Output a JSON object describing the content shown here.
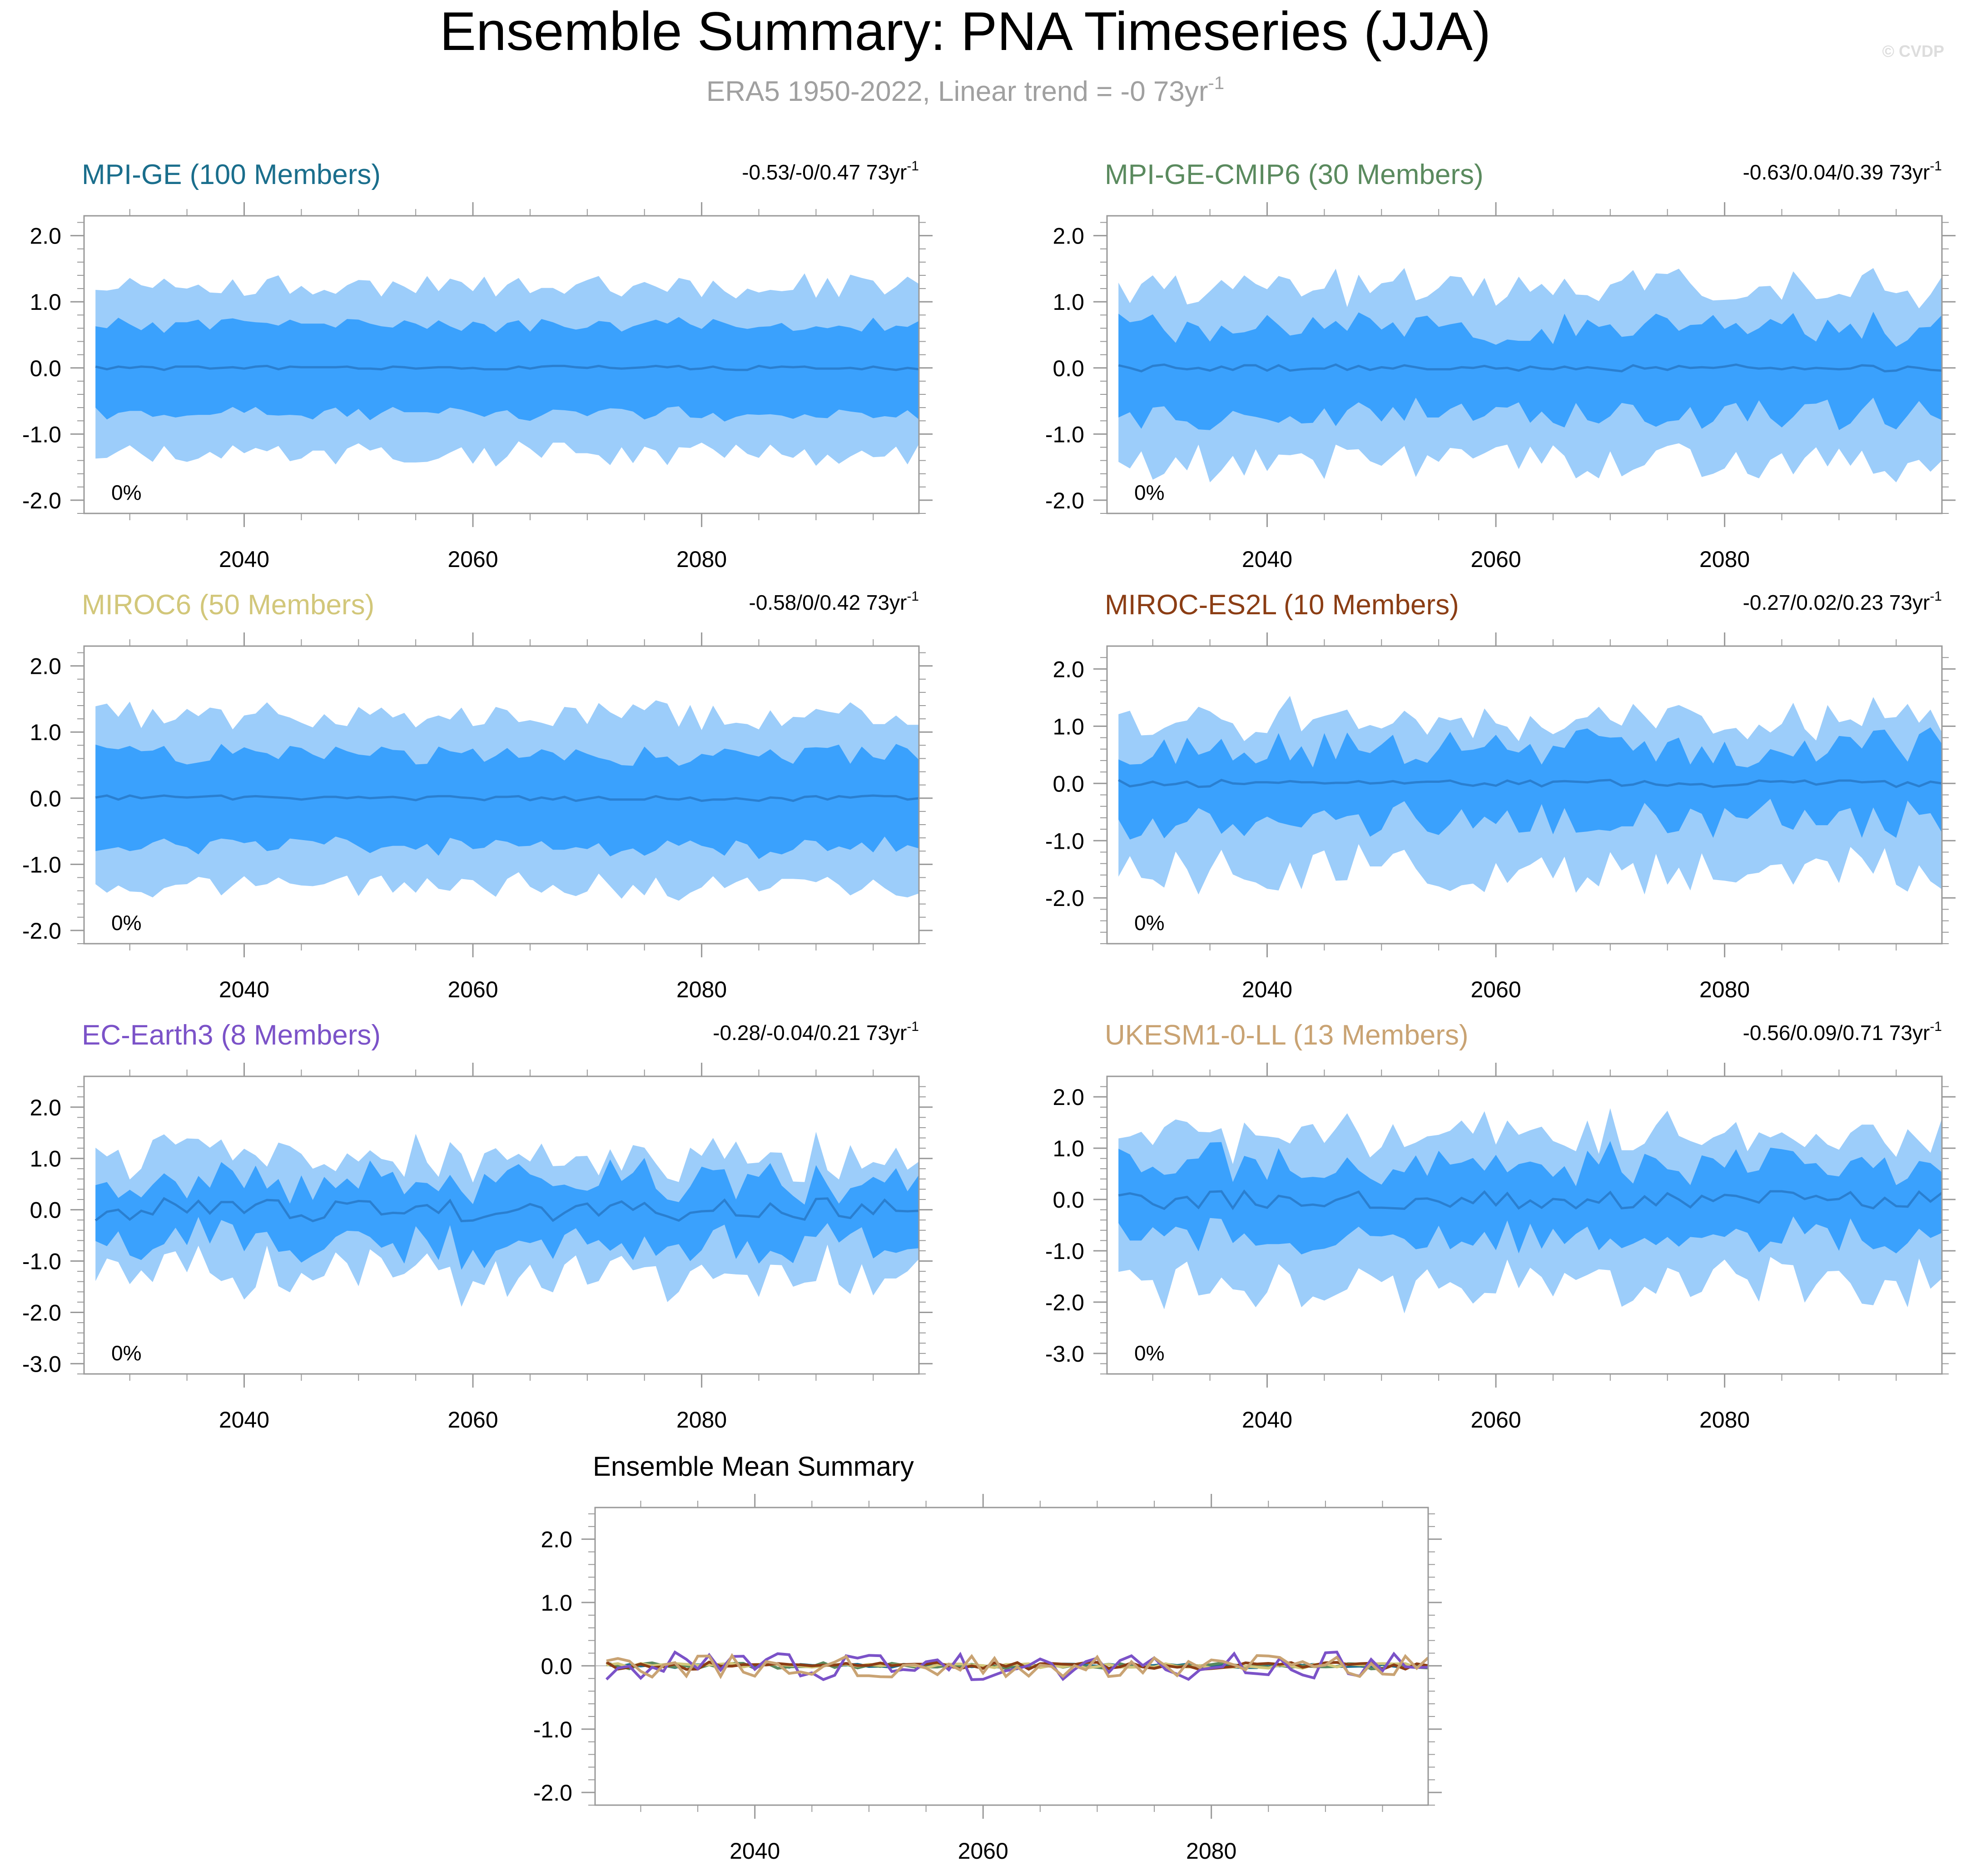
{
  "figure": {
    "title": "Ensemble Summary: PNA Timeseries (JJA)",
    "subtitle_main": "ERA5 1950-2022, Linear trend = -0 73yr",
    "subtitle_sup": "-1",
    "watermark": "© CVDP"
  },
  "colors": {
    "outer_band": "#9ccdfa",
    "inner_band": "#3aa1fd",
    "median_line": "#2a7fd0",
    "axis": "#999999",
    "title_text": "#000000",
    "subtitle_text": "#a0a0a0",
    "watermark_text": "#dddddd"
  },
  "chart_data": [
    {
      "type": "area",
      "id": "mpi-ge",
      "title": "MPI-GE (100 Members)",
      "title_color": "#1a6e8c",
      "trend_main": "-0.53/-0/0.47 73yr",
      "trend_sup": "-1",
      "percent_label": "0%",
      "xlim": [
        2026,
        2099
      ],
      "ylim": [
        -2.2,
        2.3
      ],
      "yticks": [
        -2.0,
        -1.0,
        0.0,
        1.0,
        2.0
      ],
      "ytick_labels": [
        "-2.0",
        "-1.0",
        "0.0",
        "1.0",
        "2.0"
      ],
      "xticks": [
        2040,
        2060,
        2080
      ],
      "xtick_labels": [
        "2040",
        "2060",
        "2080"
      ],
      "x_start": 2027,
      "x_end": 2099,
      "amp": {
        "outer_hi": 1.25,
        "outer_lo": 1.3,
        "inner_hi": 0.65,
        "inner_lo": 0.7,
        "mean": 0.03,
        "var_outer": 0.18,
        "var_inner": 0.1
      },
      "seed": 11
    },
    {
      "type": "area",
      "id": "mpi-ge-cmip6",
      "title": "MPI-GE-CMIP6 (30 Members)",
      "title_color": "#5a8a5e",
      "trend_main": "-0.63/0.04/0.39 73yr",
      "trend_sup": "-1",
      "percent_label": "0%",
      "xlim": [
        2026,
        2099
      ],
      "ylim": [
        -2.2,
        2.3
      ],
      "yticks": [
        -2.0,
        -1.0,
        0.0,
        1.0,
        2.0
      ],
      "ytick_labels": [
        "-2.0",
        "-1.0",
        "0.0",
        "1.0",
        "2.0"
      ],
      "xticks": [
        2040,
        2060,
        2080
      ],
      "xtick_labels": [
        "2040",
        "2060",
        "2080"
      ],
      "x_start": 2027,
      "x_end": 2099,
      "amp": {
        "outer_hi": 1.2,
        "outer_lo": 1.45,
        "inner_hi": 0.6,
        "inner_lo": 0.7,
        "mean": 0.05,
        "var_outer": 0.3,
        "var_inner": 0.25
      },
      "seed": 23
    },
    {
      "type": "area",
      "id": "miroc6",
      "title": "MIROC6 (50 Members)",
      "title_color": "#d2c77a",
      "trend_main": "-0.58/0/0.42 73yr",
      "trend_sup": "-1",
      "percent_label": "0%",
      "xlim": [
        2026,
        2099
      ],
      "ylim": [
        -2.2,
        2.3
      ],
      "yticks": [
        -2.0,
        -1.0,
        0.0,
        1.0,
        2.0
      ],
      "ytick_labels": [
        "-2.0",
        "-1.0",
        "0.0",
        "1.0",
        "2.0"
      ],
      "xticks": [
        2040,
        2060,
        2080
      ],
      "xtick_labels": [
        "2040",
        "2060",
        "2080"
      ],
      "x_start": 2027,
      "x_end": 2099,
      "amp": {
        "outer_hi": 1.25,
        "outer_lo": 1.35,
        "inner_hi": 0.65,
        "inner_lo": 0.75,
        "mean": 0.04,
        "var_outer": 0.2,
        "var_inner": 0.15
      },
      "seed": 37
    },
    {
      "type": "area",
      "id": "miroc-es2l",
      "title": "MIROC-ES2L (10 Members)",
      "title_color": "#8b3d14",
      "trend_main": "-0.27/0.02/0.23 73yr",
      "trend_sup": "-1",
      "percent_label": "0%",
      "xlim": [
        2026,
        2099
      ],
      "ylim": [
        -2.8,
        2.4
      ],
      "yticks": [
        -2.0,
        -1.0,
        0.0,
        1.0,
        2.0
      ],
      "ytick_labels": [
        "-2.0",
        "-1.0",
        "0.0",
        "1.0",
        "2.0"
      ],
      "xticks": [
        2040,
        2060,
        2080
      ],
      "xtick_labels": [
        "2040",
        "2060",
        "2080"
      ],
      "x_start": 2027,
      "x_end": 2099,
      "amp": {
        "outer_hi": 1.05,
        "outer_lo": 1.55,
        "inner_hi": 0.6,
        "inner_lo": 0.65,
        "mean": 0.06,
        "var_outer": 0.45,
        "var_inner": 0.35
      },
      "seed": 41
    },
    {
      "type": "area",
      "id": "ec-earth3",
      "title": "EC-Earth3 (8 Members)",
      "title_color": "#7b52c8",
      "trend_main": "-0.28/-0.04/0.21 73yr",
      "trend_sup": "-1",
      "percent_label": "0%",
      "xlim": [
        2026,
        2099
      ],
      "ylim": [
        -3.2,
        2.6
      ],
      "yticks": [
        -3.0,
        -2.0,
        -1.0,
        0.0,
        1.0,
        2.0
      ],
      "ytick_labels": [
        "-3.0",
        "-2.0",
        "-1.0",
        "0.0",
        "1.0",
        "2.0"
      ],
      "xticks": [
        2040,
        2060,
        2080
      ],
      "xtick_labels": [
        "2040",
        "2060",
        "2080"
      ],
      "x_start": 2027,
      "x_end": 2099,
      "amp": {
        "outer_hi": 1.0,
        "outer_lo": 1.25,
        "inner_hi": 0.55,
        "inner_lo": 0.65,
        "mean": 0.22,
        "var_outer": 0.45,
        "var_inner": 0.35
      },
      "seed": 53
    },
    {
      "type": "area",
      "id": "ukesm1-0-ll",
      "title": "UKESM1-0-LL (13 Members)",
      "title_color": "#c9a373",
      "trend_main": "-0.56/0.09/0.71 73yr",
      "trend_sup": "-1",
      "percent_label": "0%",
      "xlim": [
        2026,
        2099
      ],
      "ylim": [
        -3.4,
        2.4
      ],
      "yticks": [
        -3.0,
        -2.0,
        -1.0,
        0.0,
        1.0,
        2.0
      ],
      "ytick_labels": [
        "-3.0",
        "-2.0",
        "-1.0",
        "0.0",
        "1.0",
        "2.0"
      ],
      "xticks": [
        2040,
        2060,
        2080
      ],
      "xtick_labels": [
        "2040",
        "2060",
        "2080"
      ],
      "x_start": 2027,
      "x_end": 2099,
      "amp": {
        "outer_hi": 1.25,
        "outer_lo": 1.65,
        "inner_hi": 0.7,
        "inner_lo": 0.75,
        "mean": 0.18,
        "var_outer": 0.4,
        "var_inner": 0.3
      },
      "seed": 67
    },
    {
      "type": "line",
      "id": "ensemble-mean",
      "title": "Ensemble Mean Summary",
      "title_color": "#000000",
      "xlim": [
        2026,
        2099
      ],
      "ylim": [
        -2.2,
        2.5
      ],
      "yticks": [
        -2.0,
        -1.0,
        0.0,
        1.0,
        2.0
      ],
      "ytick_labels": [
        "-2.0",
        "-1.0",
        "0.0",
        "1.0",
        "2.0"
      ],
      "xticks": [
        2040,
        2060,
        2080
      ],
      "xtick_labels": [
        "2040",
        "2060",
        "2080"
      ],
      "x_start": 2027,
      "x_end": 2099,
      "series": [
        {
          "name": "MPI-GE",
          "color": "#1a6e8c",
          "amp": 0.03,
          "seed": 11
        },
        {
          "name": "MPI-GE-CMIP6",
          "color": "#5a8a5e",
          "amp": 0.05,
          "seed": 23
        },
        {
          "name": "MIROC6",
          "color": "#d2c77a",
          "amp": 0.04,
          "seed": 37
        },
        {
          "name": "MIROC-ES2L",
          "color": "#8b3d14",
          "amp": 0.06,
          "seed": 41
        },
        {
          "name": "EC-Earth3",
          "color": "#7b52c8",
          "amp": 0.22,
          "seed": 53
        },
        {
          "name": "UKESM1-0-LL",
          "color": "#c9a373",
          "amp": 0.18,
          "seed": 67
        }
      ]
    }
  ]
}
